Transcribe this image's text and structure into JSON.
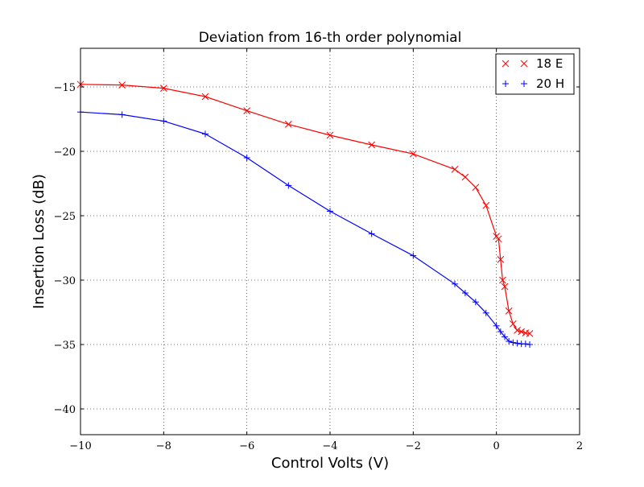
{
  "chart_data": {
    "type": "line",
    "title": "Deviation from 16-th order polynomial",
    "xlabel": "Control Volts (V)",
    "ylabel": "Insertion Loss (dB)",
    "xlim": [
      -10,
      2
    ],
    "ylim": [
      -42,
      -12
    ],
    "xticks": [
      -10,
      -8,
      -6,
      -4,
      -2,
      0,
      2
    ],
    "yticks": [
      -40,
      -35,
      -30,
      -25,
      -20,
      -15
    ],
    "xtick_labels": [
      "−10",
      "−8",
      "−6",
      "−4",
      "−2",
      "0",
      "2"
    ],
    "ytick_labels": [
      "−40",
      "−35",
      "−30",
      "−25",
      "−20",
      "−15"
    ],
    "grid": true,
    "legend_position": "top-right",
    "series": [
      {
        "name": "18 E",
        "color": "#ff0000",
        "marker": "x",
        "x": [
          -10,
          -9,
          -8,
          -7,
          -6,
          -5,
          -4,
          -3,
          -2,
          -1,
          -0.75,
          -0.5,
          -0.25,
          0,
          0.05,
          0.1,
          0.15,
          0.2,
          0.3,
          0.4,
          0.5,
          0.6,
          0.7,
          0.8
        ],
        "y": [
          -14.8,
          -14.85,
          -15.1,
          -15.75,
          -16.85,
          -17.9,
          -18.75,
          -19.5,
          -20.2,
          -21.4,
          -22.0,
          -22.8,
          -24.2,
          -26.6,
          -26.8,
          -28.4,
          -30.0,
          -30.5,
          -32.4,
          -33.4,
          -33.9,
          -34.0,
          -34.1,
          -34.15
        ]
      },
      {
        "name": "20 H",
        "color": "#0000ff",
        "marker": "+",
        "x": [
          -10,
          -9,
          -8,
          -7,
          -6,
          -5,
          -4,
          -3,
          -2,
          -1,
          -0.75,
          -0.5,
          -0.25,
          0,
          0.1,
          0.2,
          0.3,
          0.4,
          0.5,
          0.6,
          0.7,
          0.8
        ],
        "y": [
          -16.95,
          -17.15,
          -17.65,
          -18.65,
          -20.5,
          -22.65,
          -24.65,
          -26.4,
          -28.1,
          -30.3,
          -31.0,
          -31.7,
          -32.55,
          -33.55,
          -34.0,
          -34.4,
          -34.75,
          -34.85,
          -34.9,
          -34.95,
          -34.95,
          -35.0
        ]
      }
    ]
  }
}
